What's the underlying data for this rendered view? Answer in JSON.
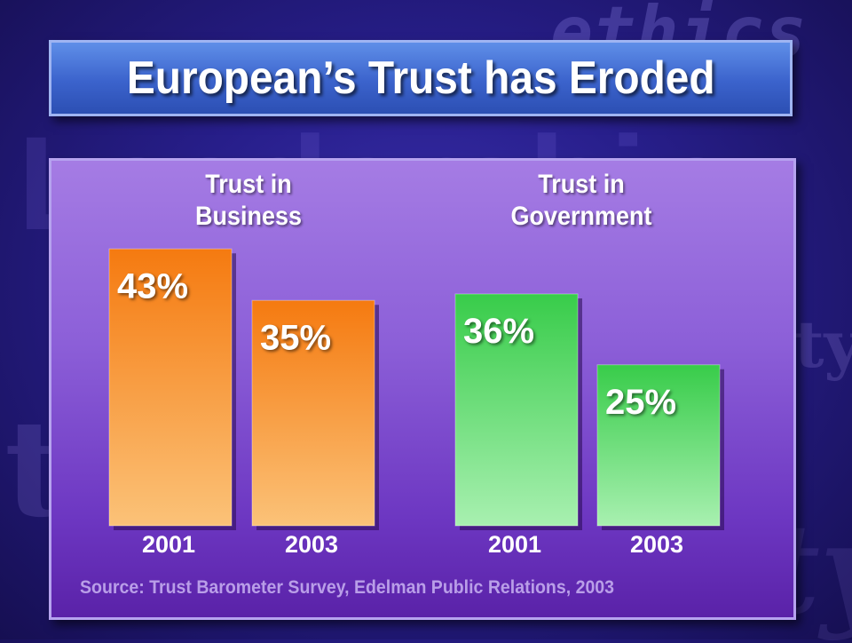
{
  "background_words": [
    "ethics",
    "Leadership",
    "responsibility",
    "trust",
    "authority"
  ],
  "title": "European’s Trust has Eroded",
  "chart_data": {
    "type": "bar",
    "unit": "%",
    "groups": [
      {
        "label": "Trust in Business",
        "label_lines": [
          "Trust in",
          "Business"
        ],
        "color": "#f57a10",
        "color_light": "#fbc278",
        "bars": [
          {
            "category": "2001",
            "value": 43,
            "label": "43%"
          },
          {
            "category": "2003",
            "value": 35,
            "label": "35%"
          }
        ]
      },
      {
        "label": "Trust in Government",
        "label_lines": [
          "Trust in",
          "Government"
        ],
        "color": "#38cc4a",
        "color_light": "#a8f0b0",
        "bars": [
          {
            "category": "2001",
            "value": 36,
            "label": "36%"
          },
          {
            "category": "2003",
            "value": 25,
            "label": "25%"
          }
        ]
      }
    ]
  },
  "source": "Source: Trust Barometer Survey, Edelman Public Relations, 2003"
}
